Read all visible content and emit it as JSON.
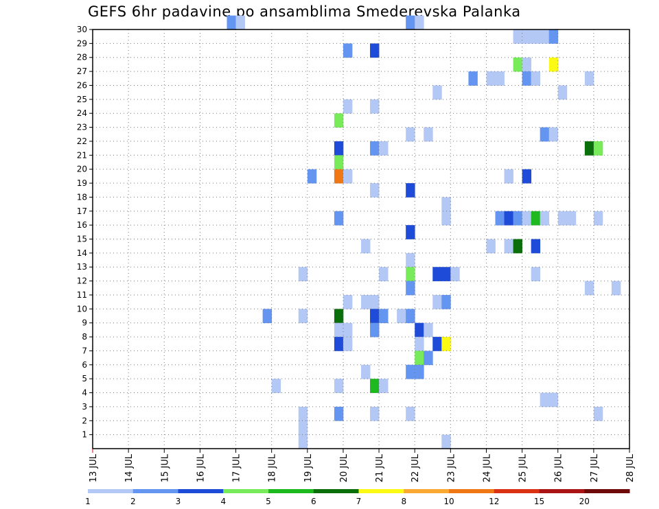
{
  "chart_data": {
    "type": "heatmap",
    "title": "GEFS 6hr padavine po ansamblima Smederevska Palanka",
    "x_tick_labels": [
      "13 JUL",
      "14 JUL",
      "15 JUL",
      "16 JUL",
      "17 JUL",
      "18 JUL",
      "19 JUL",
      "20 JUL",
      "21 JUL",
      "22 JUL",
      "23 JUL",
      "24 JUL",
      "25 JUL",
      "26 JUL",
      "27 JUL",
      "28 JUL"
    ],
    "x_range_days": [
      13,
      28
    ],
    "y_tick_labels": [
      "1",
      "2",
      "3",
      "4",
      "5",
      "6",
      "7",
      "8",
      "9",
      "10",
      "11",
      "12",
      "13",
      "14",
      "15",
      "16",
      "17",
      "18",
      "19",
      "20",
      "21",
      "22",
      "23",
      "24",
      "25",
      "26",
      "27",
      "28",
      "29",
      "30"
    ],
    "y_range_members": [
      1,
      30
    ],
    "grid": "dotted",
    "legend_placement": "bottom",
    "legend": {
      "tick_labels": [
        "1",
        "2",
        "3",
        "4",
        "5",
        "6",
        "7",
        "8",
        "10",
        "12",
        "15",
        "20"
      ],
      "colors": [
        "#b4c8f5",
        "#6495f0",
        "#1e4bd7",
        "#78eb5a",
        "#1eb91e",
        "#0a6e0a",
        "#fafa14",
        "#faaa32",
        "#f07814",
        "#dc3214",
        "#aa1414",
        "#6e0a0a"
      ]
    },
    "cells_columns": [
      "member",
      "start_day",
      "precip_class"
    ],
    "cells": [
      [
        30,
        16.75,
        2
      ],
      [
        30,
        17.0,
        1
      ],
      [
        30,
        21.75,
        2
      ],
      [
        30,
        22.0,
        1
      ],
      [
        29,
        24.75,
        1
      ],
      [
        29,
        25.0,
        1
      ],
      [
        29,
        25.25,
        1
      ],
      [
        29,
        25.5,
        1
      ],
      [
        29,
        25.75,
        2
      ],
      [
        28,
        20.0,
        2
      ],
      [
        28,
        20.75,
        3
      ],
      [
        27,
        24.75,
        4
      ],
      [
        27,
        25.0,
        1
      ],
      [
        27,
        25.75,
        7
      ],
      [
        26,
        23.5,
        2
      ],
      [
        26,
        24.0,
        1
      ],
      [
        26,
        24.25,
        1
      ],
      [
        26,
        25.0,
        2
      ],
      [
        26,
        25.25,
        1
      ],
      [
        26,
        26.75,
        1
      ],
      [
        25,
        22.5,
        1
      ],
      [
        25,
        26.0,
        1
      ],
      [
        24,
        20.0,
        1
      ],
      [
        24,
        20.75,
        1
      ],
      [
        23,
        19.75,
        4
      ],
      [
        22,
        21.75,
        1
      ],
      [
        22,
        22.25,
        1
      ],
      [
        22,
        25.5,
        2
      ],
      [
        22,
        25.75,
        1
      ],
      [
        21,
        19.75,
        3
      ],
      [
        21,
        20.75,
        2
      ],
      [
        21,
        21.0,
        1
      ],
      [
        21,
        26.75,
        6
      ],
      [
        21,
        27.0,
        4
      ],
      [
        20,
        19.75,
        4
      ],
      [
        19,
        19.0,
        2
      ],
      [
        19,
        19.75,
        9
      ],
      [
        19,
        20.0,
        1
      ],
      [
        19,
        24.5,
        1
      ],
      [
        19,
        25.0,
        3
      ],
      [
        18,
        20.75,
        1
      ],
      [
        18,
        21.75,
        3
      ],
      [
        17,
        22.75,
        1
      ],
      [
        16,
        19.75,
        2
      ],
      [
        16,
        22.75,
        1
      ],
      [
        16,
        24.25,
        2
      ],
      [
        16,
        24.5,
        3
      ],
      [
        16,
        24.75,
        2
      ],
      [
        16,
        25.0,
        1
      ],
      [
        16,
        25.25,
        5
      ],
      [
        16,
        25.5,
        1
      ],
      [
        16,
        26.0,
        1
      ],
      [
        16,
        26.25,
        1
      ],
      [
        16,
        27.0,
        1
      ],
      [
        15,
        21.75,
        3
      ],
      [
        14,
        20.5,
        1
      ],
      [
        14,
        24.0,
        1
      ],
      [
        14,
        24.5,
        1
      ],
      [
        14,
        24.75,
        6
      ],
      [
        14,
        25.25,
        3
      ],
      [
        13,
        21.75,
        1
      ],
      [
        12,
        18.75,
        1
      ],
      [
        12,
        21.0,
        1
      ],
      [
        12,
        21.75,
        4
      ],
      [
        12,
        22.5,
        3
      ],
      [
        12,
        22.75,
        3
      ],
      [
        12,
        23.0,
        1
      ],
      [
        12,
        25.25,
        1
      ],
      [
        11,
        21.75,
        2
      ],
      [
        11,
        26.75,
        1
      ],
      [
        11,
        27.5,
        1
      ],
      [
        10,
        20.0,
        1
      ],
      [
        10,
        20.5,
        1
      ],
      [
        10,
        20.75,
        1
      ],
      [
        10,
        22.5,
        1
      ],
      [
        10,
        22.75,
        2
      ],
      [
        9,
        17.75,
        2
      ],
      [
        9,
        18.75,
        1
      ],
      [
        9,
        19.75,
        6
      ],
      [
        9,
        20.75,
        3
      ],
      [
        9,
        21.0,
        2
      ],
      [
        9,
        21.5,
        1
      ],
      [
        9,
        21.75,
        2
      ],
      [
        8,
        19.75,
        1
      ],
      [
        8,
        20.0,
        1
      ],
      [
        8,
        20.75,
        2
      ],
      [
        8,
        22.0,
        3
      ],
      [
        8,
        22.25,
        1
      ],
      [
        7,
        19.75,
        3
      ],
      [
        7,
        20.0,
        1
      ],
      [
        7,
        22.0,
        1
      ],
      [
        7,
        22.5,
        3
      ],
      [
        7,
        22.75,
        7
      ],
      [
        6,
        22.0,
        4
      ],
      [
        6,
        22.25,
        2
      ],
      [
        5,
        20.5,
        1
      ],
      [
        5,
        21.75,
        2
      ],
      [
        5,
        22.0,
        2
      ],
      [
        4,
        18.0,
        1
      ],
      [
        4,
        19.75,
        1
      ],
      [
        4,
        20.75,
        5
      ],
      [
        4,
        21.0,
        1
      ],
      [
        3,
        25.5,
        1
      ],
      [
        3,
        25.75,
        1
      ],
      [
        2,
        18.75,
        1
      ],
      [
        2,
        19.75,
        2
      ],
      [
        2,
        20.75,
        1
      ],
      [
        2,
        21.75,
        1
      ],
      [
        2,
        27.0,
        1
      ],
      [
        1,
        18.75,
        1
      ],
      [
        0,
        18.75,
        1
      ],
      [
        0,
        22.75,
        1
      ]
    ]
  }
}
